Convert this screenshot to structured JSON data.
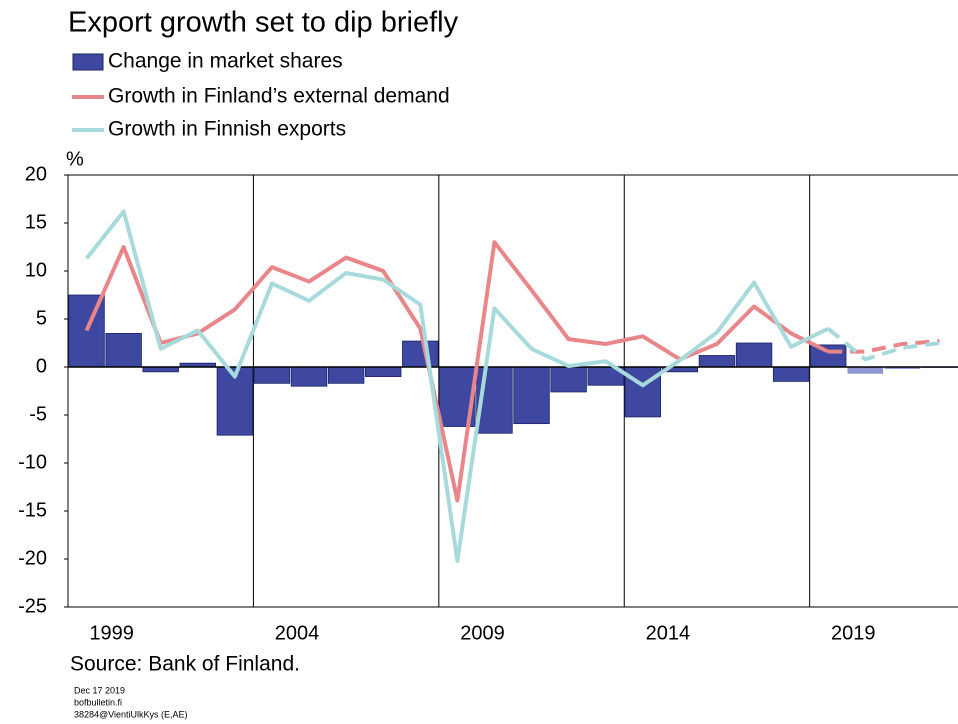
{
  "chart_data": {
    "type": "bar-line",
    "title": "Export growth set to dip briefly",
    "y_unit": "%",
    "source": "Source: Bank of Finland.",
    "footnotes": [
      "Dec 17 2019",
      "bofbulletin.fi",
      "38284@VientiUlkKys (E,AE)"
    ],
    "categories": [
      null,
      "1999",
      null,
      null,
      null,
      null,
      "2004",
      null,
      null,
      null,
      null,
      "2009",
      null,
      null,
      null,
      null,
      "2014",
      null,
      null,
      null,
      null,
      "2019",
      null,
      null
    ],
    "forecast_from": "2019",
    "ylim": [
      -25,
      20
    ],
    "yticks": [
      -25,
      -20,
      -15,
      -10,
      -5,
      0,
      5,
      10,
      15,
      20
    ],
    "series": [
      {
        "name": "Change in market shares",
        "kind": "bar",
        "color": "#3f48a0",
        "forecast_color": "#8f95d2",
        "values": [
          7.5,
          3.5,
          -0.5,
          0.4,
          -7.1,
          -1.7,
          -2.0,
          -1.7,
          -1.0,
          2.7,
          -6.2,
          -6.9,
          -5.9,
          -2.6,
          -1.9,
          -5.2,
          -0.5,
          1.2,
          2.5,
          -1.5,
          2.3,
          -0.7,
          -0.2,
          -0.1
        ]
      },
      {
        "name": "Growth in Finland’s external demand",
        "kind": "line",
        "color": "#e8868a",
        "values": [
          3.8,
          12.5,
          2.5,
          3.5,
          6.0,
          10.4,
          8.9,
          11.4,
          10.0,
          4.0,
          -13.9,
          13.0,
          8.0,
          2.9,
          2.4,
          3.2,
          0.8,
          2.4,
          6.3,
          3.5,
          1.6,
          1.6,
          2.4,
          2.7
        ]
      },
      {
        "name": "Growth in Finnish exports",
        "kind": "line",
        "color": "#a8dadc",
        "values": [
          11.3,
          16.2,
          1.9,
          3.8,
          -1.0,
          8.7,
          6.9,
          9.8,
          9.1,
          6.5,
          -20.2,
          6.1,
          1.9,
          0.1,
          0.6,
          -1.9,
          0.7,
          3.6,
          8.8,
          2.1,
          4.0,
          0.8,
          2.0,
          2.5
        ]
      }
    ]
  }
}
